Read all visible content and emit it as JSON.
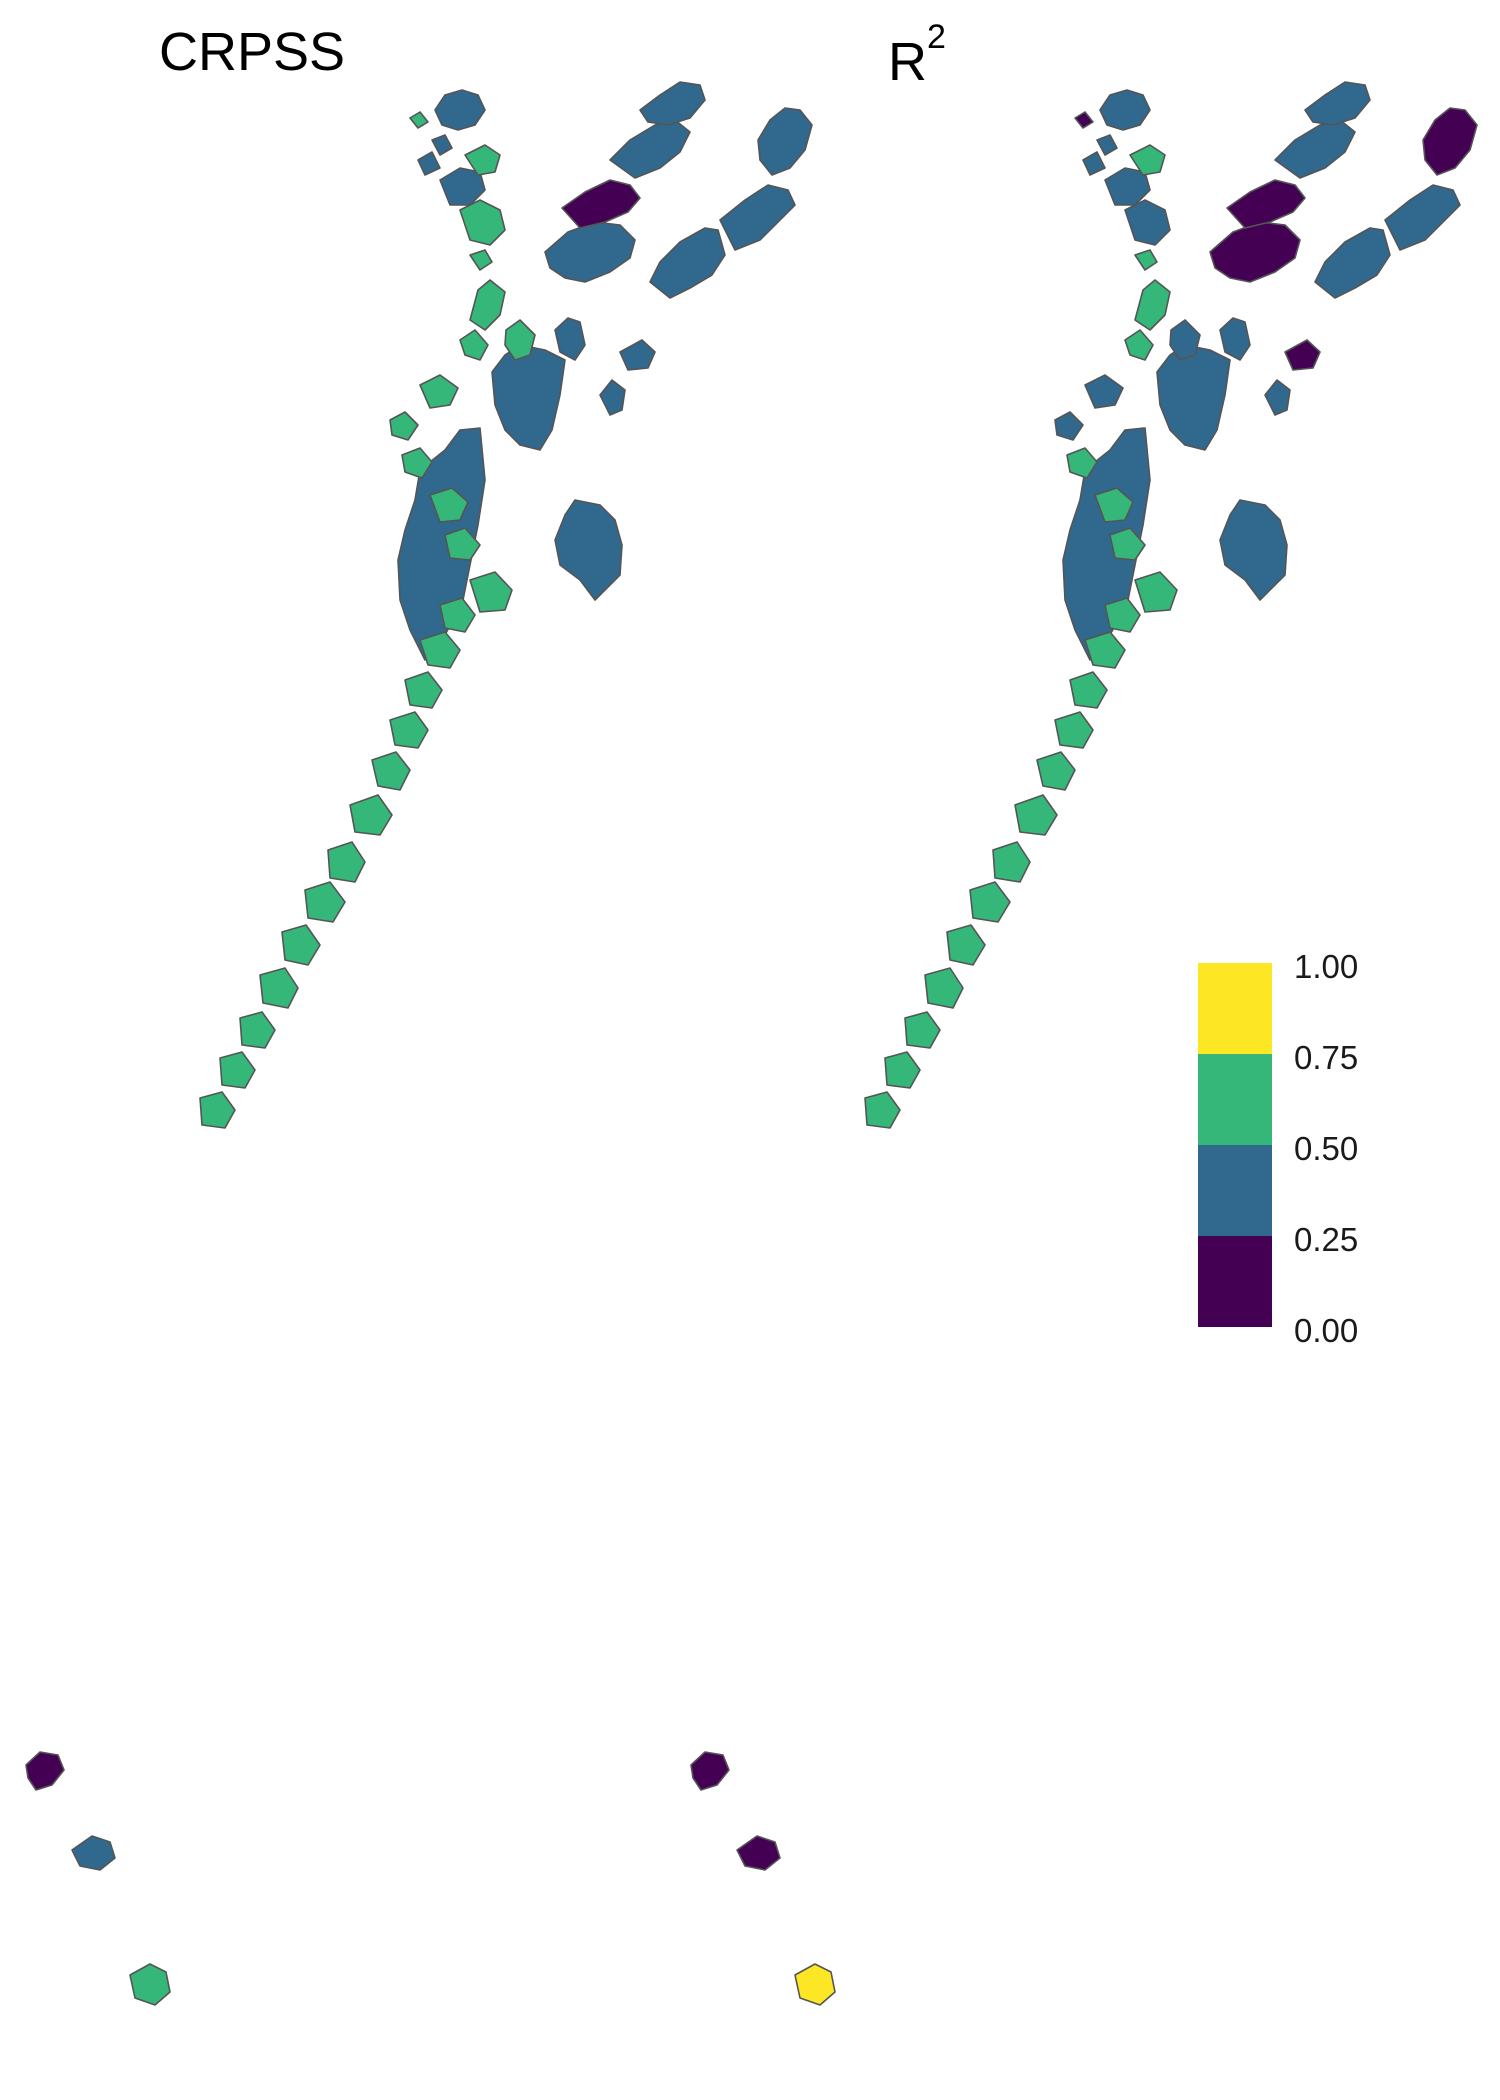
{
  "panels": {
    "left_title": "CRPSS",
    "right_title_base": "R",
    "right_title_sup": "2"
  },
  "legend": {
    "ticks": [
      "1.00",
      "0.75",
      "0.50",
      "0.25",
      "0.00"
    ],
    "bins": [
      {
        "range": "0.75-1.00",
        "color": "#fde725"
      },
      {
        "range": "0.50-0.75",
        "color": "#35b779"
      },
      {
        "range": "0.25-0.50",
        "color": "#31688e"
      },
      {
        "range": "0.00-0.25",
        "color": "#440154"
      }
    ]
  },
  "colors": {
    "bin_0": "#440154",
    "bin_1": "#31688e",
    "bin_2": "#35b779",
    "bin_3": "#fde725",
    "border": "#555555"
  },
  "map_values": {
    "north_crpss": [
      "bin_1",
      "bin_1",
      "bin_1",
      "bin_1",
      "bin_1",
      "bin_1",
      "bin_1",
      "bin_1",
      "bin_1",
      "bin_1",
      "bin_0",
      "bin_1",
      "bin_1"
    ],
    "north_r2": [
      "bin_1",
      "bin_1",
      "bin_1",
      "bin_1",
      "bin_0",
      "bin_1",
      "bin_1",
      "bin_1",
      "bin_0",
      "bin_0",
      "bin_0",
      "bin_1",
      "bin_1"
    ],
    "south_crpss": [
      "bin_1",
      "bin_2",
      "bin_1",
      "bin_1",
      "bin_1",
      "bin_2",
      "bin_2",
      "bin_2",
      "bin_2",
      "bin_2",
      "bin_2",
      "bin_2",
      "bin_2",
      "bin_2",
      "bin_2",
      "bin_2",
      "bin_2",
      "bin_2",
      "bin_2",
      "bin_2",
      "bin_2",
      "bin_2",
      "bin_2",
      "bin_2",
      "bin_2",
      "bin_2",
      "bin_2",
      "bin_2",
      "bin_2",
      "bin_2",
      "bin_0",
      "bin_1",
      "bin_2"
    ],
    "south_r2": [
      "bin_1",
      "bin_0",
      "bin_1",
      "bin_1",
      "bin_1",
      "bin_2",
      "bin_1",
      "bin_2",
      "bin_2",
      "bin_1",
      "bin_2",
      "bin_1",
      "bin_1",
      "bin_2",
      "bin_2",
      "bin_2",
      "bin_2",
      "bin_2",
      "bin_2",
      "bin_2",
      "bin_2",
      "bin_2",
      "bin_2",
      "bin_2",
      "bin_2",
      "bin_2",
      "bin_2",
      "bin_2",
      "bin_2",
      "bin_2",
      "bin_0",
      "bin_0",
      "bin_3"
    ]
  }
}
